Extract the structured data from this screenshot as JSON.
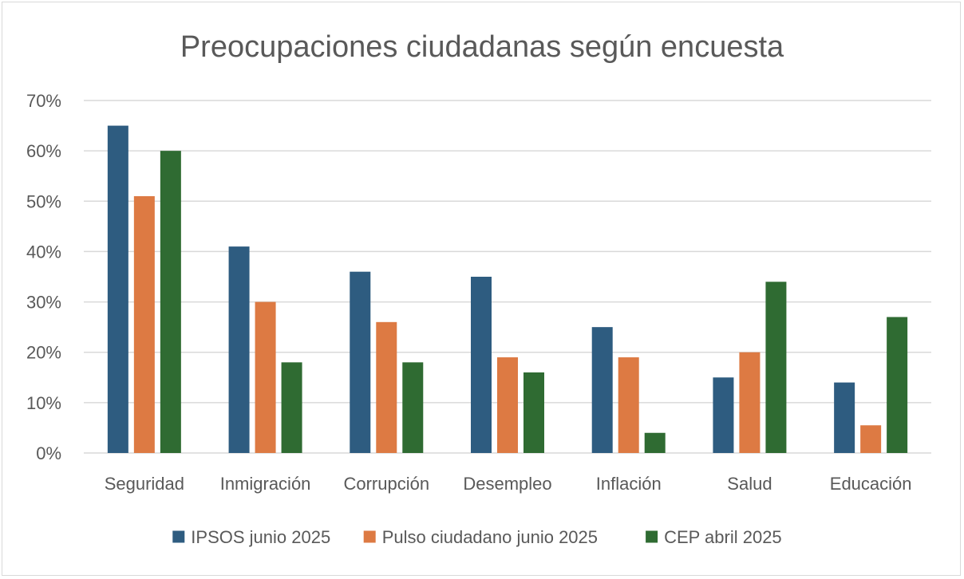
{
  "chart_data": {
    "type": "bar",
    "title": "Preocupaciones ciudadanas según encuesta",
    "xlabel": "",
    "ylabel": "",
    "ylim": [
      0,
      70
    ],
    "y_ticks": [
      "0%",
      "10%",
      "20%",
      "30%",
      "40%",
      "50%",
      "60%",
      "70%"
    ],
    "grid": true,
    "legend_position": "bottom",
    "categories": [
      "Seguridad",
      "Inmigración",
      "Corrupción",
      "Desempleo",
      "Inflación",
      "Salud",
      "Educación"
    ],
    "series": [
      {
        "name": "IPSOS junio 2025",
        "color": "#2e5c80",
        "values": [
          65,
          41,
          36,
          35,
          25,
          15,
          14
        ]
      },
      {
        "name": "Pulso ciudadano junio 2025",
        "color": "#dd7a43",
        "values": [
          51,
          30,
          26,
          19,
          19,
          20,
          5.5
        ]
      },
      {
        "name": "CEP abril 2025",
        "color": "#2f6b32",
        "values": [
          60,
          18,
          18,
          16,
          4,
          34,
          27
        ]
      }
    ]
  }
}
